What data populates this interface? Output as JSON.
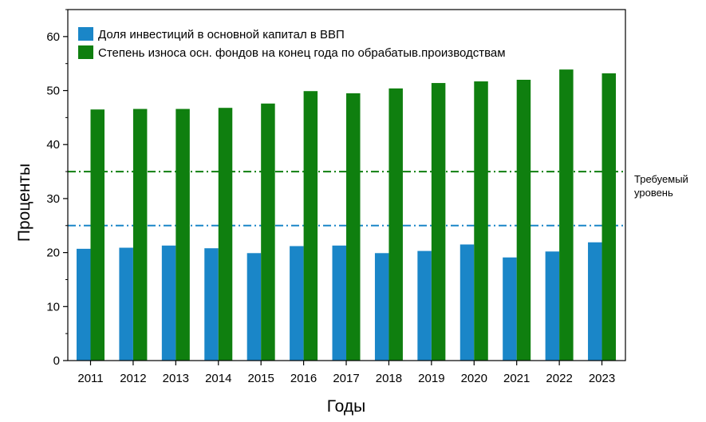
{
  "chart_data": {
    "type": "bar",
    "categories": [
      "2011",
      "2012",
      "2013",
      "2014",
      "2015",
      "2016",
      "2017",
      "2018",
      "2019",
      "2020",
      "2021",
      "2022",
      "2023"
    ],
    "series": [
      {
        "name": "Доля инвестиций в основной капитал в ВВП",
        "color": "#1a86c8",
        "values": [
          20.7,
          20.9,
          21.3,
          20.8,
          19.9,
          21.2,
          21.3,
          19.9,
          20.3,
          21.5,
          19.1,
          20.2,
          21.9
        ]
      },
      {
        "name": "Степень износа осн. фондов на конец года по обрабатыв.производствам",
        "color": "#0f7f0f",
        "values": [
          46.5,
          46.6,
          46.6,
          46.8,
          47.6,
          49.9,
          49.5,
          50.4,
          51.4,
          51.7,
          52.0,
          53.9,
          53.2
        ]
      }
    ],
    "reference_lines": [
      {
        "value": 35,
        "color": "#0f7f0f",
        "style": "dash-dot"
      },
      {
        "value": 25,
        "color": "#1a86c8",
        "style": "dash-dot"
      }
    ],
    "reference_label": [
      "Требуемый",
      "уровень"
    ],
    "xlabel": "Годы",
    "ylabel": "Проценты",
    "ylim": [
      0,
      65
    ],
    "yticks": [
      "0",
      "10",
      "20",
      "30",
      "40",
      "50",
      "60"
    ],
    "legend_position": "top-left"
  }
}
